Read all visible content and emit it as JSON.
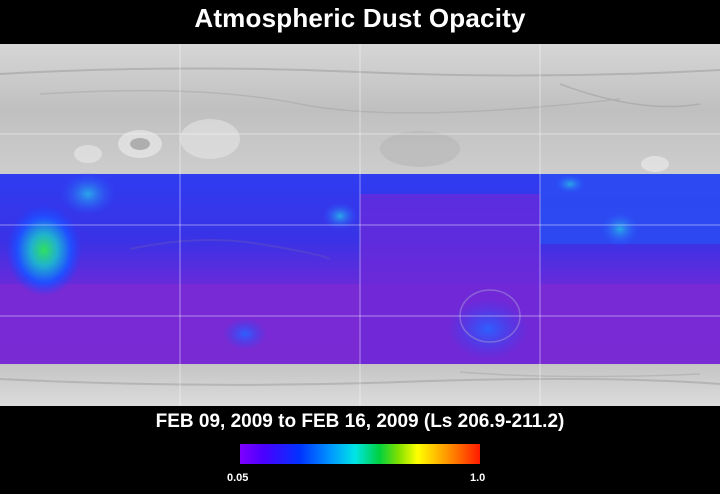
{
  "title": "Atmospheric Dust Opacity",
  "subtitle": "FEB 09, 2009 to FEB 16, 2009 (Ls 206.9-211.2)",
  "colorbar": {
    "min_label": "0.05",
    "max_label": "1.0",
    "colors": [
      "#7f00ff",
      "#0033ff",
      "#0099ff",
      "#00e5e5",
      "#00d040",
      "#ffff00",
      "#ff9900",
      "#ff1a00"
    ]
  },
  "map": {
    "terrain_color": "#c8c8c8",
    "low_opacity_color": "#7a2bd6",
    "mid_opacity_color": "#2a2cff",
    "high_opacity_color": "#2fd080"
  }
}
